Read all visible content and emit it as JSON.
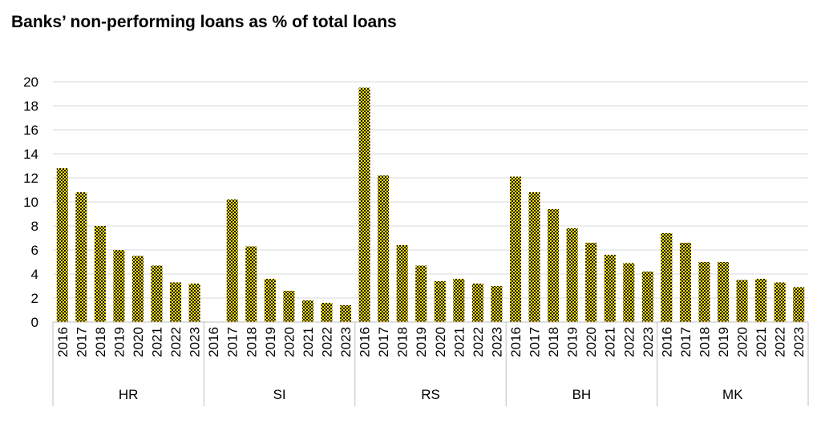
{
  "chart_data": {
    "type": "bar",
    "title": "Banks’ non-performing loans as % of total loans",
    "xlabel": "",
    "ylabel": "",
    "ylim": [
      0,
      20
    ],
    "yticks": [
      0,
      2,
      4,
      6,
      8,
      10,
      12,
      14,
      16,
      18,
      20
    ],
    "grid": true,
    "legend": "none",
    "bar_color": "#ffe000",
    "bar_pattern": "black checkered",
    "years": [
      "2016",
      "2017",
      "2018",
      "2019",
      "2020",
      "2021",
      "2022",
      "2023"
    ],
    "groups": [
      {
        "name": "HR",
        "values": [
          12.8,
          10.8,
          8.0,
          6.0,
          5.5,
          4.7,
          3.3,
          3.2
        ]
      },
      {
        "name": "SI",
        "values": [
          null,
          10.2,
          6.3,
          3.6,
          2.6,
          1.8,
          1.6,
          1.4
        ]
      },
      {
        "name": "RS",
        "values": [
          19.5,
          12.2,
          6.4,
          4.7,
          3.4,
          3.6,
          3.2,
          3.0
        ]
      },
      {
        "name": "BH",
        "values": [
          12.1,
          10.8,
          9.4,
          7.8,
          6.6,
          5.6,
          4.9,
          4.2
        ]
      },
      {
        "name": "MK",
        "values": [
          7.4,
          6.6,
          5.0,
          5.0,
          3.5,
          3.6,
          3.3,
          2.9
        ]
      }
    ]
  }
}
